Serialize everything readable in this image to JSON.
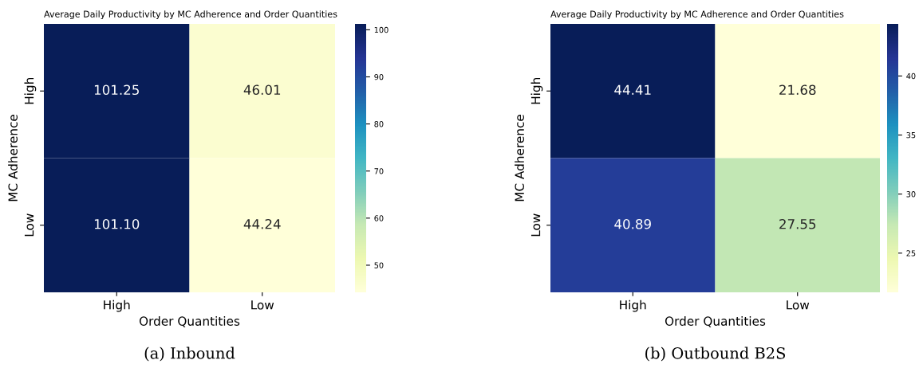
{
  "chart_data": [
    {
      "type": "heatmap",
      "title": "Average Daily Productivity by MC Adherence and Order Quantities",
      "xlabel": "Order Quantities",
      "ylabel": "MC Adherence",
      "categories": [
        "High",
        "Low"
      ],
      "y_categories": [
        "High",
        "Low"
      ],
      "cells": [
        [
          101.25,
          46.01
        ],
        [
          101.1,
          44.24
        ]
      ],
      "cell_labels": [
        [
          "101.25",
          "46.01"
        ],
        [
          "101.10",
          "44.24"
        ]
      ],
      "clim": [
        44.24,
        101.25
      ],
      "cticks": [
        50,
        60,
        70,
        80,
        90,
        100
      ],
      "annotations": [
        "(a) Inbound"
      ]
    },
    {
      "type": "heatmap",
      "title": "Average Daily Productivity by MC Adherence and Order Quantities",
      "xlabel": "Order Quantities",
      "ylabel": "MC Adherence",
      "categories": [
        "High",
        "Low"
      ],
      "y_categories": [
        "High",
        "Low"
      ],
      "cells": [
        [
          44.41,
          21.68
        ],
        [
          40.89,
          27.55
        ]
      ],
      "cell_labels": [
        [
          "44.41",
          "21.68"
        ],
        [
          "40.89",
          "27.55"
        ]
      ],
      "clim": [
        21.68,
        44.41
      ],
      "cticks": [
        25,
        30,
        35,
        40
      ],
      "annotations": [
        "(b) Outbound B2S"
      ]
    }
  ]
}
